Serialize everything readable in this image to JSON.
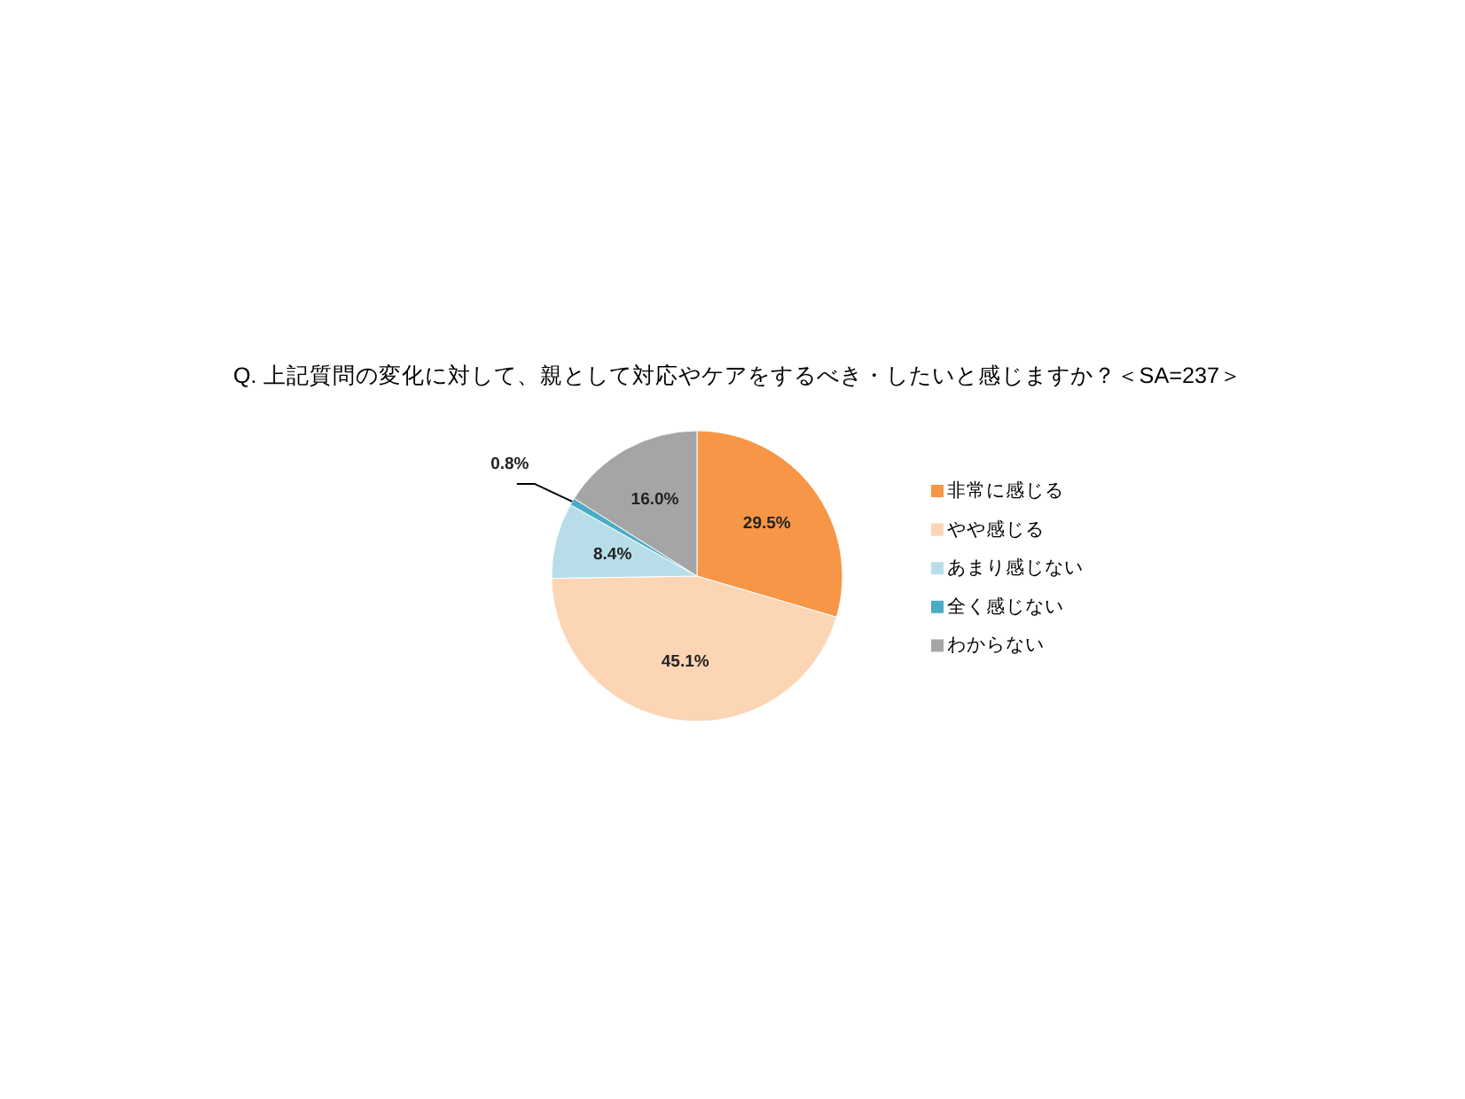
{
  "chart_data": {
    "type": "pie",
    "title": "Q. 上記質問の変化に対して、親として対応やケアをするべき・したいと感じますか？＜SA=237＞",
    "categories": [
      "非常に感じる",
      "やや感じる",
      "あまり感じない",
      "全く感じない",
      "わからない"
    ],
    "values": [
      29.5,
      45.1,
      8.4,
      0.8,
      16.0
    ],
    "colors": [
      "#f79646",
      "#fcd5b5",
      "#b7dee8",
      "#4bacc6",
      "#a5a5a5"
    ],
    "value_labels": [
      "29.5%",
      "45.1%",
      "8.4%",
      "0.8%",
      "16.0%"
    ],
    "legend": "right"
  }
}
